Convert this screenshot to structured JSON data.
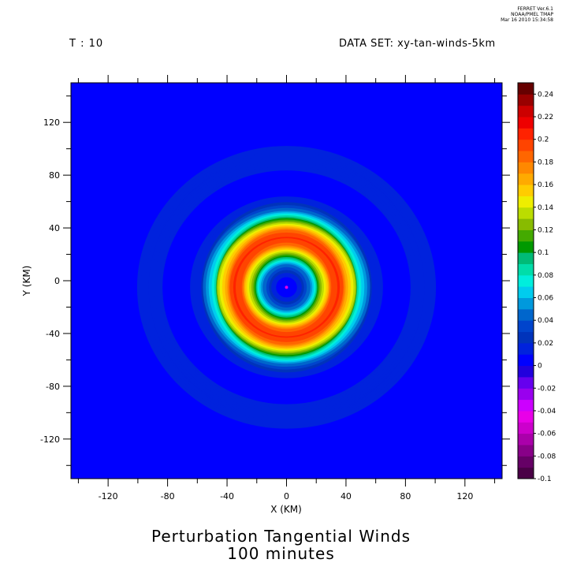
{
  "header": {
    "time_label": "T : 10",
    "dataset_label": "DATA SET: xy-tan-winds-5km",
    "ferret_lines": [
      "FERRET  Ver.6.1",
      "NOAA/PMEL TMAP",
      "Mar 16 2010 15:34:58"
    ]
  },
  "title": {
    "line1": "Perturbation Tangential Winds",
    "line2": "100 minutes"
  },
  "chart_data": {
    "type": "heatmap",
    "xlabel": "X (KM)",
    "ylabel": "Y (KM)",
    "xlim": [
      -145,
      145
    ],
    "ylim": [
      -150,
      150
    ],
    "xticks": [
      -120,
      -80,
      -40,
      0,
      40,
      80,
      120
    ],
    "yticks": [
      -120,
      -80,
      -40,
      0,
      40,
      80,
      120
    ],
    "colorbar": {
      "levels": [
        -0.1,
        -0.09,
        -0.08,
        -0.07,
        -0.06,
        -0.05,
        -0.04,
        -0.03,
        -0.02,
        -0.01,
        0,
        0.01,
        0.02,
        0.03,
        0.04,
        0.05,
        0.06,
        0.07,
        0.08,
        0.09,
        0.1,
        0.11,
        0.12,
        0.13,
        0.14,
        0.15,
        0.16,
        0.17,
        0.18,
        0.19,
        0.2,
        0.21,
        0.22,
        0.23,
        0.24,
        0.25
      ],
      "tick_labels": [
        "-0.1",
        "-0.08",
        "-0.06",
        "-0.04",
        "-0.02",
        "0",
        "0.02",
        "0.04",
        "0.06",
        "0.08",
        "0.1",
        "0.12",
        "0.14",
        "0.16",
        "0.18",
        "0.2",
        "0.22",
        "0.24"
      ],
      "colors": [
        "#4a0046",
        "#660066",
        "#880088",
        "#aa00aa",
        "#cc00cc",
        "#e800e8",
        "#cc00ff",
        "#9900ee",
        "#6600ee",
        "#2200dd",
        "#0000ff",
        "#0022dd",
        "#0033bb",
        "#0044cc",
        "#0066cc",
        "#0099dd",
        "#00ccee",
        "#00eedd",
        "#00ddaa",
        "#00bb77",
        "#009900",
        "#44aa00",
        "#88bb00",
        "#bbdd00",
        "#eeee00",
        "#ffcc00",
        "#ffaa00",
        "#ff8800",
        "#ff6600",
        "#ff4400",
        "#ff2200",
        "#ee0000",
        "#cc0000",
        "#990000",
        "#660000"
      ]
    },
    "field": {
      "description_units": "km",
      "center": [
        0,
        -5
      ],
      "peak_radius": 35,
      "peak_value": 0.2,
      "inner_value": 0.0
    }
  }
}
